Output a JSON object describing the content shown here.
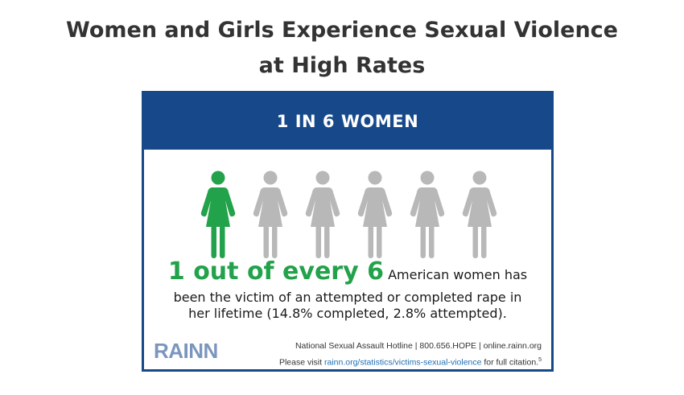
{
  "title": {
    "line1": "Women and Girls Experience Sexual Violence",
    "line2": "at High Rates"
  },
  "card": {
    "header": "1 IN 6 WOMEN",
    "figures": {
      "total": 6,
      "highlighted": 1,
      "highlight_color": "#22a24a",
      "base_color": "#b8b8b8"
    },
    "headline_big": "1 out of every 6",
    "headline_rest": " American women has",
    "body_line2": "been the victim of an attempted or completed rape in",
    "body_line3": "her lifetime (14.8% completed, 2.8% attempted).",
    "logo": "RAINN",
    "hotline": "National Sexual Assault Hotline | 800.656.HOPE | online.rainn.org",
    "citation_prefix": "Please visit ",
    "citation_link": "rainn.org/statistics/victims-sexual-violence",
    "citation_suffix": " for full citation.",
    "citation_sup": "5",
    "colors": {
      "header_bg": "#17498a",
      "accent_green": "#22a24a",
      "link": "#1f6fb2"
    }
  }
}
